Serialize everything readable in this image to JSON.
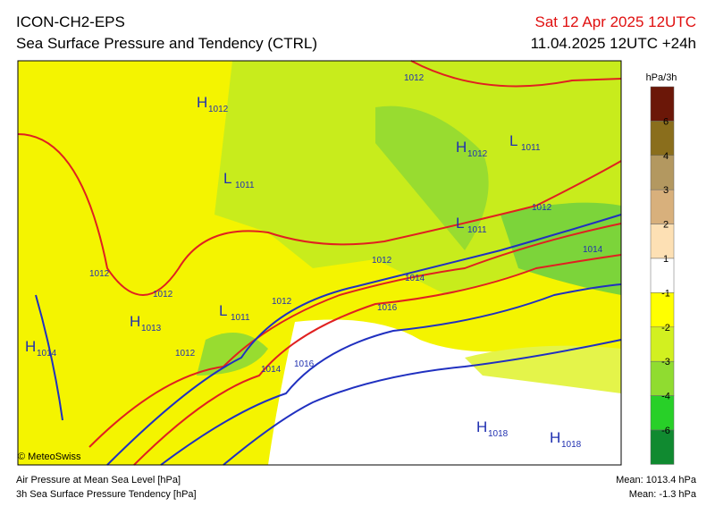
{
  "header": {
    "model": "ICON-CH2-EPS",
    "title": "Sea Surface Pressure and Tendency (CTRL)",
    "valid": "Sat 12 Apr 2025 12UTC",
    "run": "11.04.2025 12UTC +24h"
  },
  "legend": {
    "unit": "hPa/3h",
    "ticks": [
      6,
      4,
      3,
      2,
      1,
      -1,
      -2,
      -3,
      -4,
      -6
    ],
    "colors": [
      "#6b1708",
      "#8a6e1c",
      "#b39860",
      "#d8b07c",
      "#fde0b4",
      "#ffffff",
      "#ffff00",
      "#d2f020",
      "#90dc30",
      "#28d028",
      "#108a30"
    ]
  },
  "map": {
    "centers": [
      {
        "kind": "H",
        "value": 1012
      },
      {
        "kind": "L",
        "value": 1011
      },
      {
        "kind": "H",
        "value": 1012
      },
      {
        "kind": "L",
        "value": 1011
      },
      {
        "kind": "L",
        "value": 1011
      },
      {
        "kind": "H",
        "value": 1013
      },
      {
        "kind": "L",
        "value": 1011
      },
      {
        "kind": "H",
        "value": 1014
      },
      {
        "kind": "H",
        "value": 1018
      },
      {
        "kind": "H",
        "value": 1018
      }
    ],
    "isobar_labels": [
      1012,
      1012,
      1014,
      1012,
      1014,
      1016,
      1012,
      1012,
      1012,
      1012,
      1014,
      1016
    ]
  },
  "footer": {
    "credit": "© MeteoSwiss",
    "line1": "Air Pressure at Mean Sea Level [hPa]",
    "line2": "3h Sea Surface Pressure Tendency [hPa]",
    "mean_pressure": "Mean: 1013.4 hPa",
    "mean_tendency": "Mean:  -1.3 hPa"
  }
}
